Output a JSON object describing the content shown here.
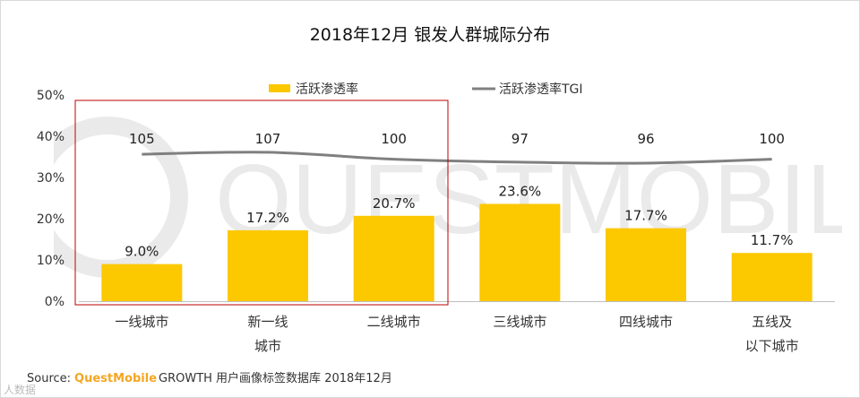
{
  "title": "2018年12月 银发人群城际分布",
  "chart_data": {
    "type": "bar",
    "categories": [
      [
        "一线城市"
      ],
      [
        "新一线",
        "城市"
      ],
      [
        "二线城市"
      ],
      [
        "三线城市"
      ],
      [
        "四线城市"
      ],
      [
        "五线及",
        "以下城市"
      ]
    ],
    "series": [
      {
        "name": "活跃渗透率",
        "type": "bar",
        "values": [
          9.0,
          17.2,
          20.7,
          23.6,
          17.7,
          11.7
        ],
        "labels": [
          "9.0%",
          "17.2%",
          "20.7%",
          "23.6%",
          "17.7%",
          "11.7%"
        ],
        "color": "#fcc800"
      },
      {
        "name": "活跃渗透率TGI",
        "type": "line",
        "values": [
          105,
          107,
          100,
          97,
          96,
          100
        ],
        "labels": [
          "105",
          "107",
          "100",
          "97",
          "96",
          "100"
        ],
        "color": "#808080"
      }
    ],
    "y_ticks": [
      "0%",
      "10%",
      "20%",
      "30%",
      "40%",
      "50%"
    ],
    "ylim": [
      0,
      50
    ],
    "highlight_categories": [
      0,
      1,
      2
    ],
    "highlight_color": "#c00000"
  },
  "source": {
    "prefix": "Source:",
    "brand": "QuestMobile",
    "text": "GROWTH 用户画像标签数据库 2018年12月"
  },
  "watermark": "QUESTMOBILE",
  "stamp": "人数据"
}
